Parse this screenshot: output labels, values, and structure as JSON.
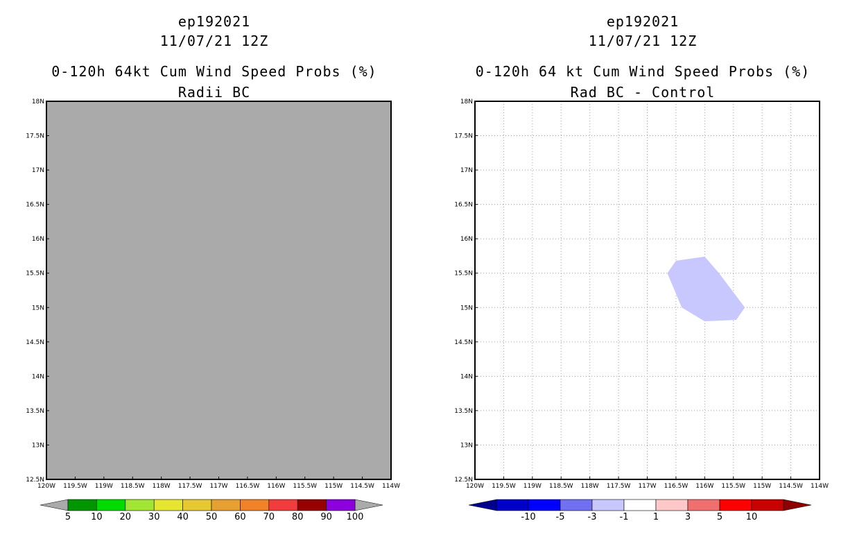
{
  "chart_data": [
    {
      "type": "heatmap",
      "title": "ep192021",
      "subtitle": "11/07/21 12Z",
      "subtitle2": "0-120h 64kt Cum Wind Speed Probs (%)",
      "subtitle3": "Radii BC",
      "xlabel": "",
      "ylabel": "",
      "xlim": [
        -120,
        -114
      ],
      "ylim": [
        12.5,
        18
      ],
      "x_ticks": [
        "120W",
        "119.5W",
        "119W",
        "118.5W",
        "118W",
        "117.5W",
        "117W",
        "116.5W",
        "116W",
        "115.5W",
        "115W",
        "114.5W",
        "114W"
      ],
      "y_ticks": [
        "12.5N",
        "13N",
        "13.5N",
        "14N",
        "14.5N",
        "15N",
        "15.5N",
        "16N",
        "16.5N",
        "17N",
        "17.5N",
        "18N"
      ],
      "grid": false,
      "field": "undefined (entire domain shaded grey)",
      "background_color": "#aaaaaa",
      "colorbar": {
        "labels": [
          "5",
          "10",
          "20",
          "30",
          "40",
          "50",
          "60",
          "70",
          "80",
          "90",
          "100"
        ],
        "colors": [
          "#009600",
          "#00dc00",
          "#a0e632",
          "#e6e632",
          "#e6c832",
          "#e6a032",
          "#f08228",
          "#f03c3c",
          "#960000",
          "#8c00dc"
        ],
        "under_color": "#aaaaaa",
        "over_color": "#aaaaaa"
      }
    },
    {
      "type": "heatmap",
      "title": "ep192021",
      "subtitle": "11/07/21 12Z",
      "subtitle2": "0-120h 64 kt Cum Wind Speed Probs (%)",
      "subtitle3": "Rad BC - Control",
      "xlabel": "",
      "ylabel": "",
      "xlim": [
        -120,
        -114
      ],
      "ylim": [
        12.5,
        18
      ],
      "x_ticks": [
        "120W",
        "119.5W",
        "119W",
        "118.5W",
        "118W",
        "117.5W",
        "117W",
        "116.5W",
        "116W",
        "115.5W",
        "115W",
        "114.5W",
        "114W"
      ],
      "y_ticks": [
        "12.5N",
        "13N",
        "13.5N",
        "14N",
        "14.5N",
        "15N",
        "15.5N",
        "16N",
        "16.5N",
        "17N",
        "17.5N",
        "18N"
      ],
      "grid": true,
      "regions": [
        {
          "category": "-3 to -1",
          "color": "#c8c8ff",
          "polygon_lonlat": [
            [
              -116.65,
              15.5
            ],
            [
              -116.5,
              15.68
            ],
            [
              -116.0,
              15.74
            ],
            [
              -115.75,
              15.5
            ],
            [
              -115.3,
              15.0
            ],
            [
              -115.45,
              14.82
            ],
            [
              -116.0,
              14.8
            ],
            [
              -116.4,
              15.0
            ]
          ]
        }
      ],
      "colorbar": {
        "labels": [
          "-10",
          "-5",
          "-3",
          "-1",
          "1",
          "3",
          "5",
          "10"
        ],
        "colors": [
          "#0000c8",
          "#0000ff",
          "#7070f0",
          "#c8c8ff",
          "#ffffff",
          "#ffc8c8",
          "#f07070",
          "#ff0000",
          "#c80000"
        ],
        "under_color": "#00008c",
        "over_color": "#8c0000"
      }
    }
  ]
}
